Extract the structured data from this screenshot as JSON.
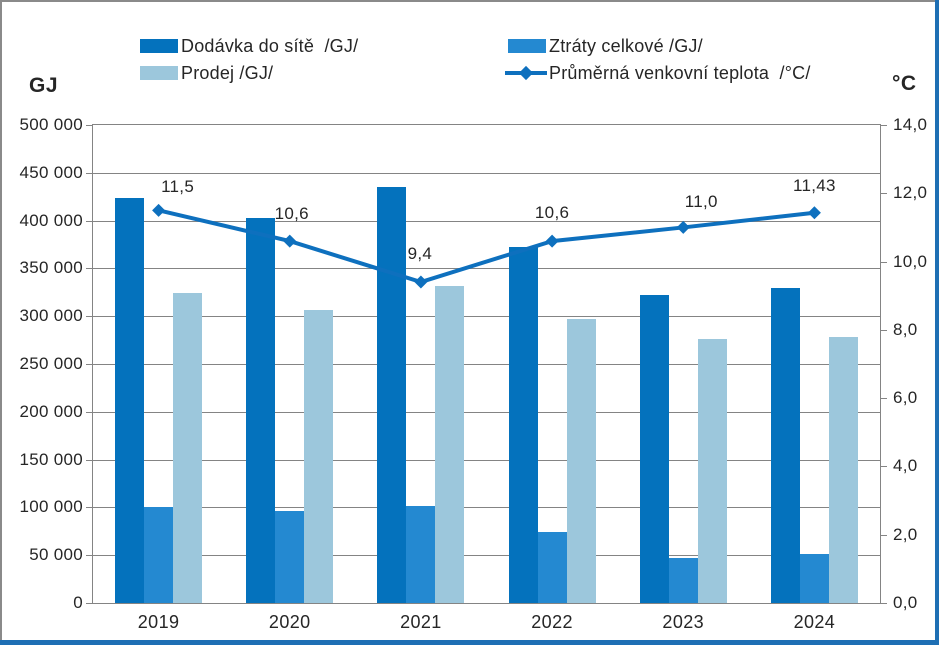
{
  "colors": {
    "bar_dark_blue": "#0472BD",
    "bar_medium_blue": "#2489D1",
    "bar_light_blue": "#9CC7DC",
    "line_blue": "#0E70BE",
    "grid_gray": "#848484",
    "frame_gray": "#8A8A8A",
    "frame_blue": "#1E6FB4",
    "text": "#262626"
  },
  "legend": {
    "items": [
      {
        "label": "Dodávka do sítě  /GJ/",
        "marker": "swatch",
        "color": "#0472BD"
      },
      {
        "label": "Ztráty celkové /GJ/",
        "marker": "swatch",
        "color": "#2489D1"
      },
      {
        "label": "Prodej /GJ/",
        "marker": "swatch",
        "color": "#9CC7DC"
      },
      {
        "label": "Průměrná venkovní teplota  /°C/",
        "marker": "line-diamond",
        "color": "#0E70BE"
      }
    ]
  },
  "axes": {
    "left_title": "GJ",
    "right_title": "°C",
    "left_ticks": [
      "500 000",
      "450 000",
      "400 000",
      "350 000",
      "300 000",
      "250 000",
      "200 000",
      "150 000",
      "100 000",
      "50 000",
      "0"
    ],
    "right_ticks": [
      "14,0",
      "12,0",
      "10,0",
      "8,0",
      "6,0",
      "4,0",
      "2,0",
      "0,0"
    ]
  },
  "chart_data": {
    "type": "bar+line combo",
    "categories": [
      "2019",
      "2020",
      "2021",
      "2022",
      "2023",
      "2024"
    ],
    "series": [
      {
        "name": "Dodávka do sítě /GJ/",
        "type": "bar",
        "axis": "left",
        "color": "#0472BD",
        "values": [
          424000,
          403000,
          435000,
          372000,
          322000,
          329000
        ]
      },
      {
        "name": "Ztráty celkové /GJ/",
        "type": "bar",
        "axis": "left",
        "color": "#2489D1",
        "values": [
          100000,
          96000,
          102000,
          74000,
          47000,
          51000
        ]
      },
      {
        "name": "Prodej /GJ/",
        "type": "bar",
        "axis": "left",
        "color": "#9CC7DC",
        "values": [
          324000,
          307000,
          332000,
          297000,
          276000,
          278000
        ]
      },
      {
        "name": "Průměrná venkovní teplota /°C/",
        "type": "line",
        "axis": "right",
        "color": "#0E70BE",
        "values": [
          11.5,
          10.6,
          9.4,
          10.6,
          11.0,
          11.43
        ],
        "point_labels": [
          "11,5",
          "10,6",
          "9,4",
          "10,6",
          "11,0",
          "11,43"
        ],
        "label_offsets": [
          [
            19,
            -23
          ],
          [
            2,
            -27
          ],
          [
            -1,
            -28
          ],
          [
            0,
            -28
          ],
          [
            18,
            -25
          ],
          [
            0,
            -27
          ]
        ]
      }
    ],
    "left_axis": {
      "min": 0,
      "max": 500000,
      "step": 50000
    },
    "right_axis": {
      "min": 0,
      "max": 14,
      "step": 2
    },
    "grid": true,
    "legend_position": "top"
  }
}
